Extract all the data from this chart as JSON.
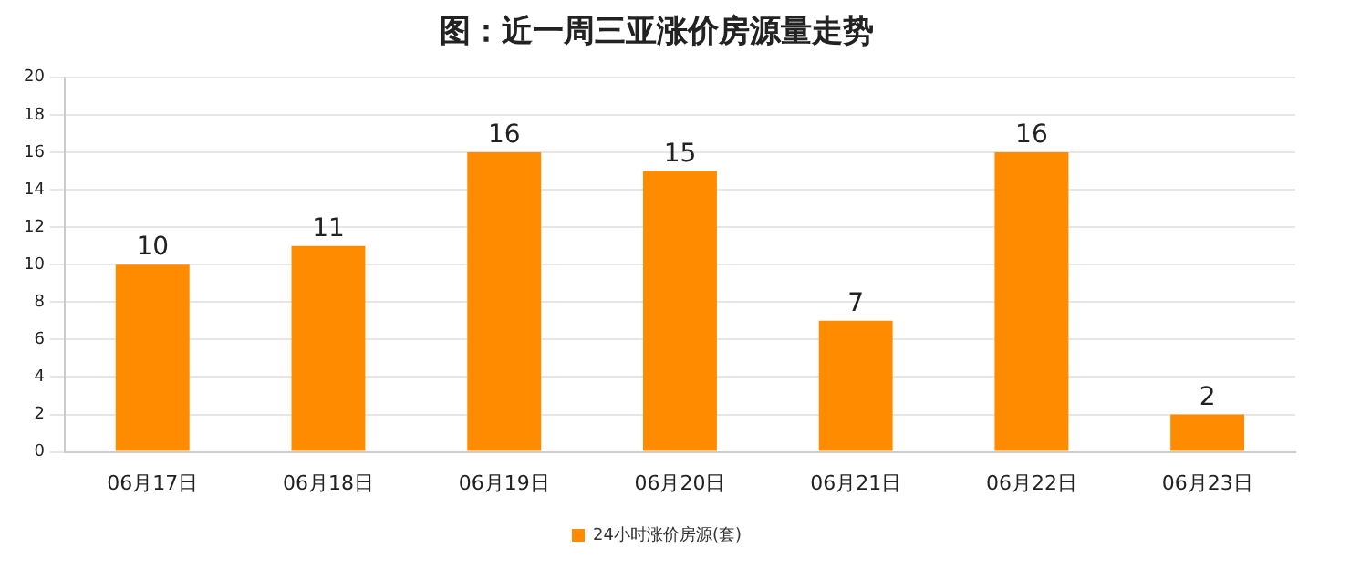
{
  "chart_data": {
    "type": "bar",
    "title": "图：近一周三亚涨价房源量走势",
    "categories": [
      "06月17日",
      "06月18日",
      "06月19日",
      "06月20日",
      "06月21日",
      "06月22日",
      "06月23日"
    ],
    "series": [
      {
        "name": "24小时涨价房源(套)",
        "color": "#ff8c00",
        "values": [
          10,
          11,
          16,
          15,
          7,
          16,
          2
        ]
      }
    ],
    "ylim": [
      0,
      20
    ],
    "yticks": [
      0,
      2,
      4,
      6,
      8,
      10,
      12,
      14,
      16,
      18,
      20
    ],
    "grid": "y",
    "legend": "bottom",
    "data_labels": true
  }
}
